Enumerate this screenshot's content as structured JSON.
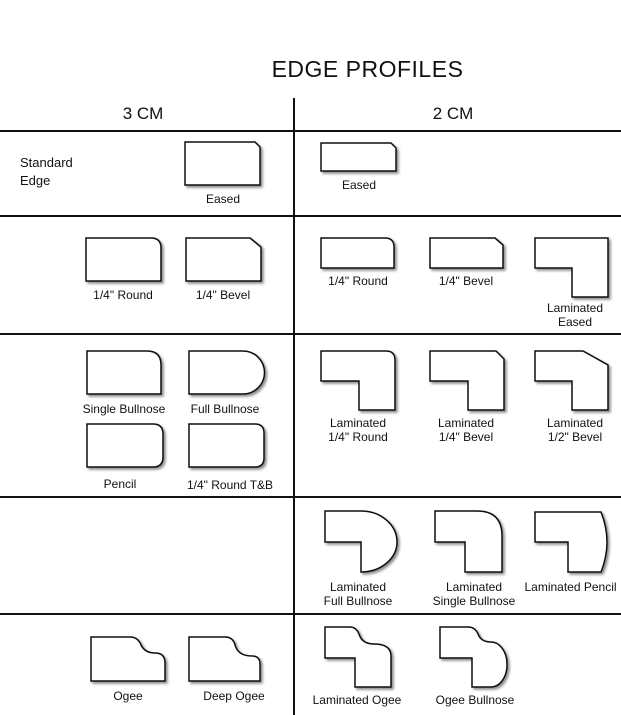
{
  "title": "EDGE PROFILES",
  "columns": {
    "left": "3 CM",
    "right": "2 CM"
  },
  "rows": {
    "standard": {
      "row_label": "Standard\nEdge",
      "left": [
        "Eased"
      ],
      "right": [
        "Eased"
      ]
    },
    "row2": {
      "left": [
        "1/4\" Round",
        "1/4\" Bevel"
      ],
      "right": [
        "1/4\" Round",
        "1/4\" Bevel",
        "Laminated\nEased"
      ]
    },
    "row3": {
      "left": [
        "Single Bullnose",
        "Full Bullnose",
        "Pencil",
        "1/4\" Round T&B"
      ],
      "right": [
        "Laminated\n1/4\" Round",
        "Laminated\n1/4\" Bevel",
        "Laminated\n1/2\" Bevel"
      ]
    },
    "row4": {
      "right": [
        "Laminated\nFull Bullnose",
        "Laminated\nSingle Bullnose",
        "Laminated Pencil"
      ]
    },
    "row5": {
      "left": [
        "Ogee",
        "Deep Ogee"
      ],
      "right": [
        "Laminated Ogee",
        "Ogee Bullnose"
      ]
    }
  }
}
